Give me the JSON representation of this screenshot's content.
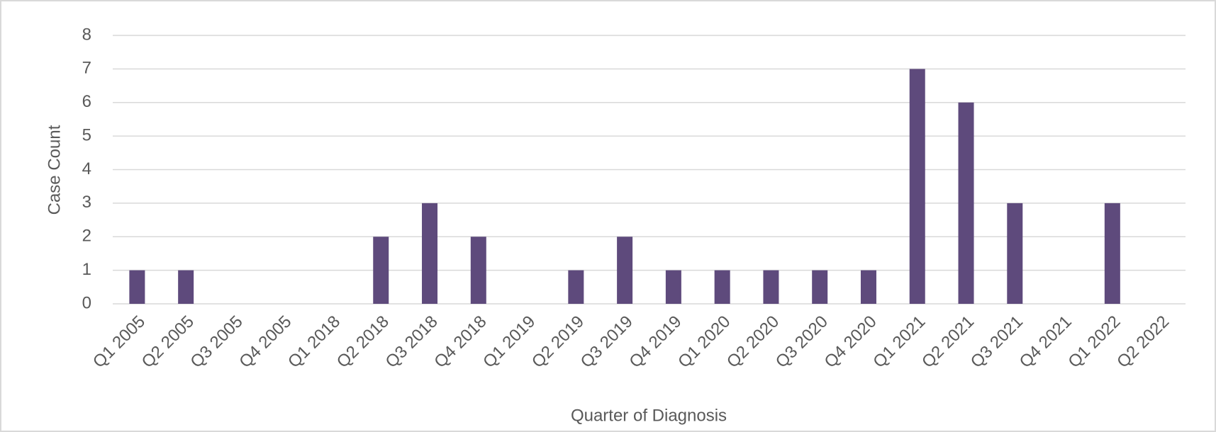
{
  "chart_data": {
    "type": "bar",
    "x_label": "Quarter of Diagnosis",
    "y_label": "Case Count",
    "categories": [
      "Q1 2005",
      "Q2 2005",
      "Q3 2005",
      "Q4 2005",
      "Q1 2018",
      "Q2 2018",
      "Q3 2018",
      "Q4 2018",
      "Q1 2019",
      "Q2 2019",
      "Q3 2019",
      "Q4 2019",
      "Q1 2020",
      "Q2 2020",
      "Q3 2020",
      "Q4 2020",
      "Q1 2021",
      "Q2 2021",
      "Q3 2021",
      "Q4 2021",
      "Q1 2022",
      "Q2 2022"
    ],
    "values": [
      1,
      1,
      0,
      0,
      0,
      2,
      3,
      2,
      0,
      1,
      2,
      1,
      1,
      1,
      1,
      1,
      7,
      6,
      3,
      0,
      3,
      0
    ],
    "color": "#5e4a7c",
    "ylim": [
      0,
      8
    ],
    "yticks": [
      0,
      1,
      2,
      3,
      4,
      5,
      6,
      7,
      8
    ],
    "grid": true
  }
}
